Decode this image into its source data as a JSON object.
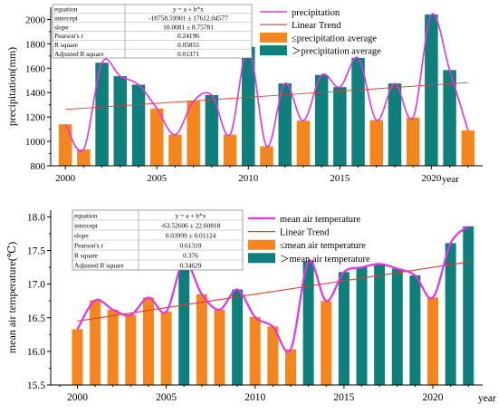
{
  "colors": {
    "below": "#F5861F",
    "above": "#0E7F7A",
    "curve": "#E533E5",
    "trend": "#E03C2C",
    "axis": "#000000"
  },
  "chart_data": [
    {
      "type": "bar",
      "title": "",
      "xlabel": "year",
      "ylabel": "precipitation(mm)",
      "ylim": [
        800,
        2100
      ],
      "yticks": [
        800,
        1000,
        1200,
        1400,
        1600,
        1800,
        2000
      ],
      "xlim": [
        1999.2,
        2022.8
      ],
      "xticks": [
        2000,
        2005,
        2010,
        2015,
        2020
      ],
      "x": [
        2000,
        2001,
        2002,
        2003,
        2004,
        2005,
        2006,
        2007,
        2008,
        2009,
        2010,
        2011,
        2012,
        2013,
        2014,
        2015,
        2016,
        2017,
        2018,
        2019,
        2020,
        2021,
        2022
      ],
      "values": [
        1140,
        935,
        1645,
        1535,
        1465,
        1270,
        1055,
        1330,
        1380,
        1055,
        1775,
        960,
        1475,
        1170,
        1545,
        1445,
        1685,
        1175,
        1475,
        1195,
        2040,
        1585,
        1090
      ],
      "above_average": [
        false,
        false,
        true,
        true,
        true,
        false,
        false,
        false,
        true,
        false,
        true,
        false,
        true,
        false,
        true,
        true,
        true,
        false,
        true,
        false,
        true,
        true,
        false
      ],
      "trend": [
        1262,
        1482
      ],
      "legend": [
        "precipitation",
        "Linear Trend",
        "≤precipitation average",
        "＞precipitation average"
      ],
      "stats_table": [
        [
          "equation",
          "y = a + b*x"
        ],
        [
          "intercept",
          "-18758.59901 ± 17612.04577"
        ],
        [
          "slope",
          "10.0081 ± 8.75781"
        ],
        [
          "Pearson's r",
          "0.24196"
        ],
        [
          "R square",
          "0.05855"
        ],
        [
          "Adjusted R square",
          "0.01371"
        ]
      ]
    },
    {
      "type": "bar",
      "title": "",
      "xlabel": "year",
      "ylabel": "mean air temperature(℃)",
      "ylim": [
        15.5,
        18.1
      ],
      "yticks": [
        15.5,
        16.0,
        16.5,
        17.0,
        17.5,
        18.0
      ],
      "xlim": [
        1998.5,
        2022.8
      ],
      "xticks": [
        2000,
        2005,
        2010,
        2015,
        2020
      ],
      "x": [
        2000,
        2001,
        2002,
        2003,
        2004,
        2005,
        2006,
        2007,
        2008,
        2009,
        2010,
        2011,
        2012,
        2013,
        2014,
        2015,
        2016,
        2017,
        2018,
        2019,
        2020,
        2021,
        2022
      ],
      "values": [
        16.33,
        16.76,
        16.62,
        16.54,
        16.8,
        16.59,
        17.34,
        16.85,
        16.62,
        16.92,
        16.51,
        16.37,
        16.03,
        17.34,
        16.75,
        17.18,
        17.25,
        17.3,
        17.23,
        17.13,
        16.8,
        17.61,
        17.86
      ],
      "above_average": [
        false,
        false,
        false,
        false,
        false,
        false,
        true,
        false,
        false,
        true,
        false,
        false,
        false,
        true,
        false,
        true,
        true,
        true,
        true,
        true,
        false,
        true,
        true
      ],
      "trend": [
        16.45,
        17.33
      ],
      "legend": [
        "mean air temperature",
        "Linear Trend",
        "≤mean air temperature",
        "＞mean air temperature"
      ],
      "stats_table": [
        [
          "equation",
          "y = a + b*x"
        ],
        [
          "intercept",
          "-63.52606 ± 22.60818"
        ],
        [
          "slope",
          "0.03999 ± 0.01124"
        ],
        [
          "Pearson's r",
          "0.61319"
        ],
        [
          "R square",
          "0.376"
        ],
        [
          "Adjusted R square",
          "0.34629"
        ]
      ]
    }
  ]
}
